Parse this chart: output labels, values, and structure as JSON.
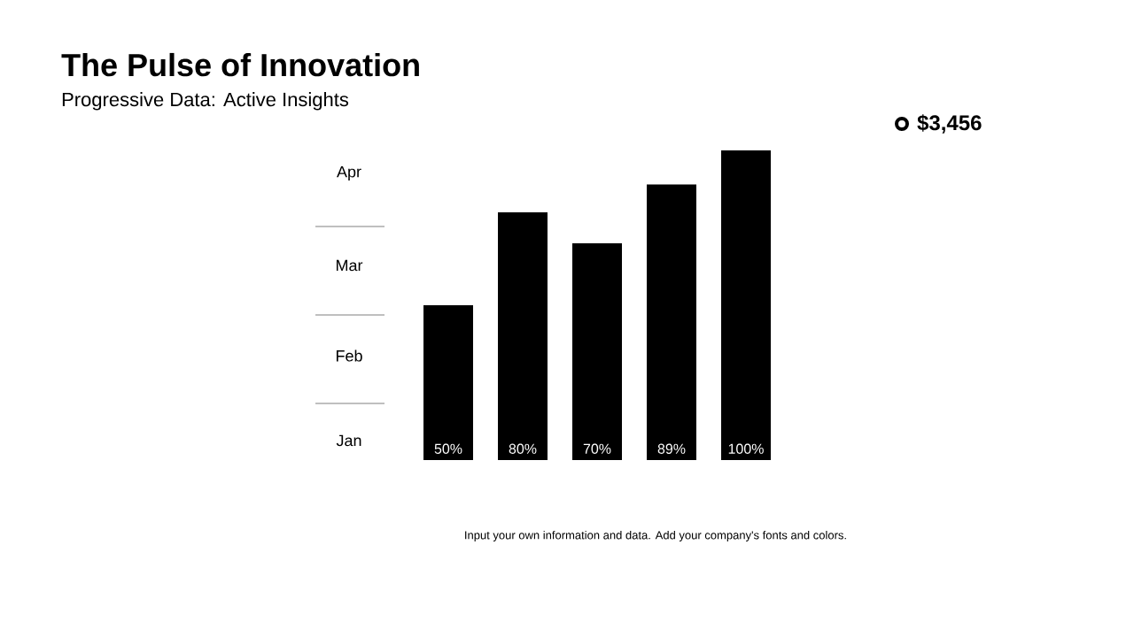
{
  "chart_data": {
    "type": "bar",
    "title": "The Pulse of Innovation",
    "subtitle": "Progressive Data: Active Insights",
    "categories": [
      null,
      null,
      null,
      null,
      null
    ],
    "values": [
      50,
      80,
      70,
      89,
      100
    ],
    "value_labels": [
      "50%",
      "80%",
      "70%",
      "89%",
      "100%"
    ],
    "color": "#000000",
    "annotations": [
      "Apr",
      "Mar",
      "Feb",
      "Jan",
      "$3,456",
      "Input your own information and data. Add your company's fonts and colors."
    ]
  }
}
